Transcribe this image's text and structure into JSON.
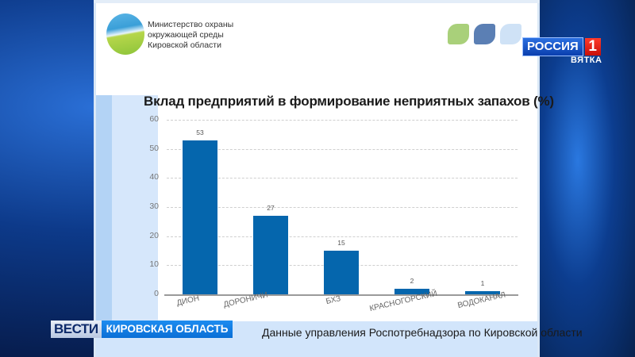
{
  "header": {
    "ministry_lines": [
      "Министерство охраны",
      "окружающей среды",
      "Кировской области"
    ],
    "leaf_colors": [
      "#a9d07a",
      "#5b7fb4",
      "#cfe2f6"
    ]
  },
  "chart_data": {
    "type": "bar",
    "title": "Вклад предприятий в формирование неприятных запахов (%)",
    "categories": [
      "ДИОН",
      "ДОРОНИЧИ",
      "БХЗ",
      "КРАСНОГОРСКИЙ",
      "ВОДОКАНАЛ"
    ],
    "values": [
      53,
      27,
      15,
      2,
      1
    ],
    "data_labels": [
      "53",
      "27",
      "15",
      "2",
      "1"
    ],
    "xlabel": "",
    "ylabel": "",
    "ylim": [
      0,
      60
    ],
    "yticks": [
      "0",
      "10",
      "20",
      "30",
      "40",
      "50",
      "60"
    ],
    "grid": true,
    "legend": null,
    "bar_color": "#0566ad"
  },
  "source_caption": "Данные управления Роспотребнадзора по Кировской области",
  "broadcast": {
    "channel_name": "РОССИЯ",
    "channel_number": "1",
    "channel_region": "ВЯТКА",
    "show_name": "ВЕСТИ",
    "show_region": "КИРОВСКАЯ ОБЛАСТЬ"
  }
}
